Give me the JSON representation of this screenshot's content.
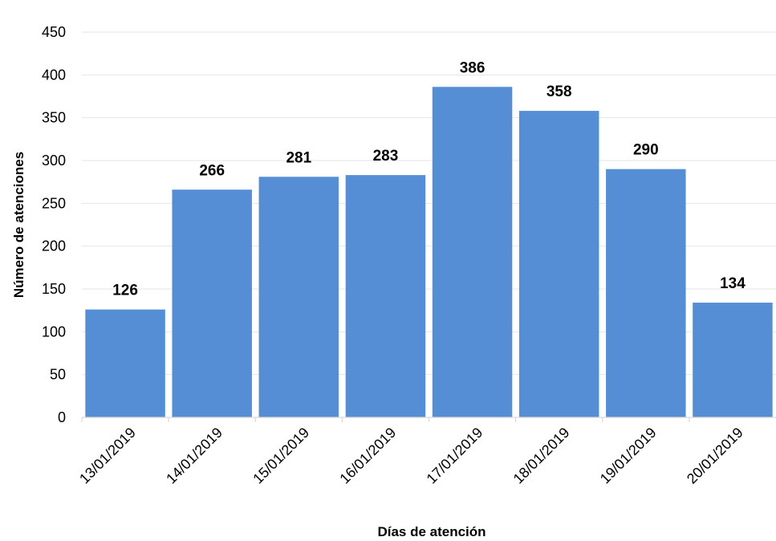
{
  "chart_data": {
    "type": "bar",
    "categories": [
      "13/01/2019",
      "14/01/2019",
      "15/01/2019",
      "16/01/2019",
      "17/01/2019",
      "18/01/2019",
      "19/01/2019",
      "20/01/2019"
    ],
    "values": [
      126,
      266,
      281,
      283,
      386,
      358,
      290,
      134
    ],
    "title": "",
    "xlabel": "Días de atención",
    "ylabel": "Número de atenciones",
    "ylim": [
      0,
      450
    ],
    "yticks": [
      0,
      50,
      100,
      150,
      200,
      250,
      300,
      350,
      400,
      450
    ],
    "grid": true,
    "legend": "none",
    "data_labels": true,
    "bar_color": "#558ed5"
  }
}
